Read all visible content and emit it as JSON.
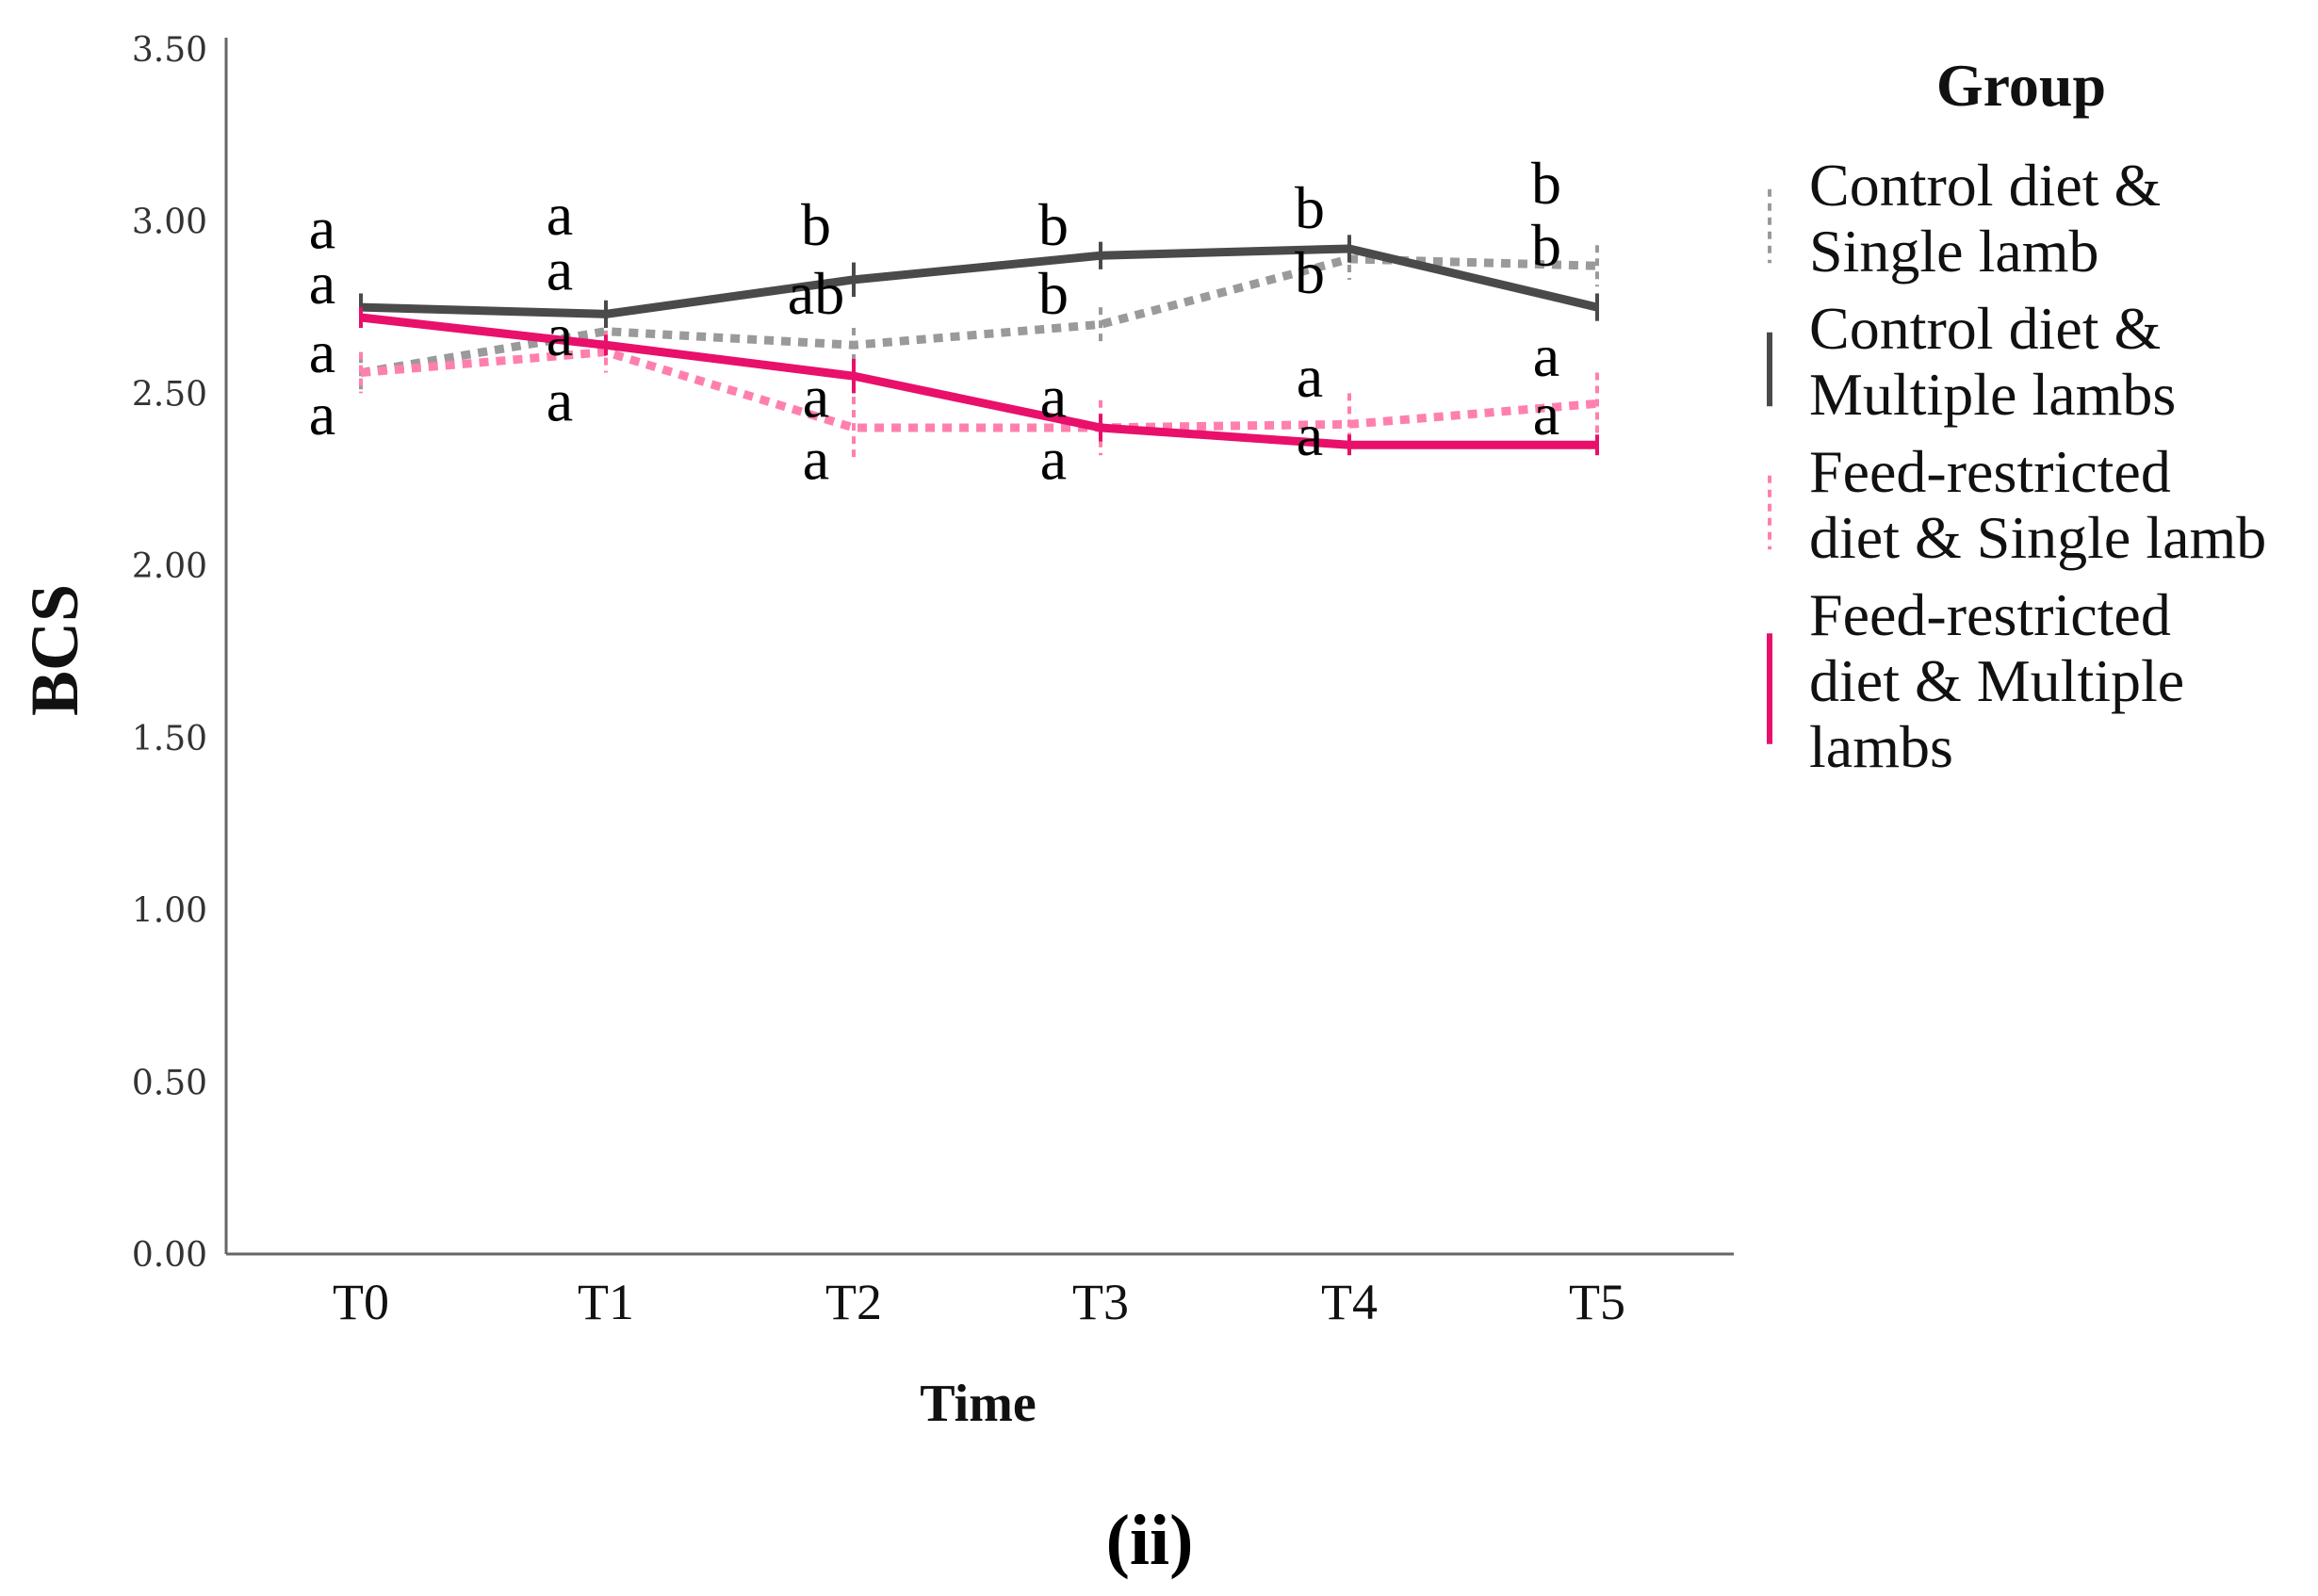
{
  "chart_data": {
    "type": "line",
    "title": "",
    "xlabel": "Time",
    "ylabel": "BCS",
    "ylim": [
      0,
      3.5
    ],
    "yticks": [
      "0.00",
      "0.50",
      "1.00",
      "1.50",
      "2.00",
      "2.50",
      "3.00",
      "3.50"
    ],
    "categories": [
      "T0",
      "T1",
      "T2",
      "T3",
      "T4",
      "T5"
    ],
    "legend_title": "Group",
    "legend_position": "right",
    "panel_label": "(ii)",
    "series": [
      {
        "name": "Control diet & Single lamb",
        "legend_lines": [
          "Control diet &",
          "Single lamb"
        ],
        "color": "#9a9a9a",
        "style": "dotted",
        "values": [
          2.56,
          2.68,
          2.64,
          2.7,
          2.89,
          2.87
        ],
        "error": [
          0.05,
          0.04,
          0.05,
          0.05,
          0.06,
          0.06
        ]
      },
      {
        "name": "Control diet & Multiple lambs",
        "legend_lines": [
          "Control diet &",
          "Multiple lambs"
        ],
        "color": "#4a4a4a",
        "style": "solid",
        "values": [
          2.75,
          2.73,
          2.83,
          2.9,
          2.92,
          2.75
        ],
        "error": [
          0.04,
          0.04,
          0.05,
          0.04,
          0.04,
          0.04
        ]
      },
      {
        "name": "Feed-restricted diet & Single lamb",
        "legend_lines": [
          "Feed-restricted",
          "diet & Single lamb"
        ],
        "color": "#ff7fae",
        "style": "dotted",
        "values": [
          2.56,
          2.62,
          2.4,
          2.4,
          2.41,
          2.47
        ],
        "error": [
          0.06,
          0.06,
          0.09,
          0.08,
          0.09,
          0.09
        ]
      },
      {
        "name": "Feed-restricted diet & Multiple lambs",
        "legend_lines": [
          "Feed-restricted",
          "diet & Multiple",
          "lambs"
        ],
        "color": "#e8106a",
        "style": "solid",
        "values": [
          2.72,
          2.64,
          2.55,
          2.4,
          2.35,
          2.35
        ],
        "error": [
          0.03,
          0.03,
          0.05,
          0.04,
          0.03,
          0.03
        ]
      }
    ],
    "significance_letters": [
      {
        "category": "T0",
        "letters": [
          "a",
          "a",
          "a",
          "a"
        ],
        "values": [
          2.97,
          2.81,
          2.61,
          2.43
        ]
      },
      {
        "category": "T1",
        "letters": [
          "a",
          "a",
          "a",
          "a"
        ],
        "values": [
          3.01,
          2.85,
          2.66,
          2.47
        ]
      },
      {
        "category": "T2",
        "letters": [
          "b",
          "ab",
          "a",
          "a"
        ],
        "values": [
          2.98,
          2.78,
          2.48,
          2.3
        ]
      },
      {
        "category": "T3",
        "letters": [
          "b",
          "b",
          "a",
          "a"
        ],
        "values": [
          2.98,
          2.78,
          2.48,
          2.3
        ]
      },
      {
        "category": "T4",
        "letters": [
          "b",
          "b",
          "a",
          "a"
        ],
        "values": [
          3.03,
          2.84,
          2.54,
          2.37
        ]
      },
      {
        "category": "T5",
        "letters": [
          "b",
          "b",
          "a",
          "a"
        ],
        "values": [
          3.1,
          2.92,
          2.6,
          2.43
        ]
      }
    ]
  }
}
